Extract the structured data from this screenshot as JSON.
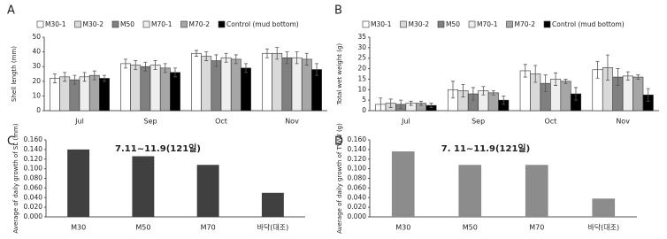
{
  "chart_data": [
    {
      "type": "bar",
      "panel_label": "A",
      "y_label": "Shell length (mm)",
      "categories": [
        "Jul",
        "Sep",
        "Oct",
        "Nov"
      ],
      "ylim": [
        0,
        50
      ],
      "yticks": [
        0,
        10,
        20,
        30,
        40,
        50
      ],
      "series": [
        {
          "name": "M30-1",
          "color": "#ffffff",
          "values": [
            22,
            32,
            39,
            39
          ],
          "errors": [
            3,
            3,
            2,
            3
          ]
        },
        {
          "name": "M30-2",
          "color": "#d9d9d9",
          "values": [
            23,
            31,
            37,
            39
          ],
          "errors": [
            3,
            3,
            3,
            4
          ]
        },
        {
          "name": "M50",
          "color": "#808080",
          "values": [
            21,
            30,
            34,
            36
          ],
          "errors": [
            3,
            3,
            4,
            4
          ]
        },
        {
          "name": "M70-1",
          "color": "#eeeeee",
          "values": [
            23,
            31,
            36,
            36
          ],
          "errors": [
            3,
            3,
            3,
            4
          ]
        },
        {
          "name": "M70-2",
          "color": "#a6a6a6",
          "values": [
            24,
            29,
            35,
            35
          ],
          "errors": [
            3,
            3,
            3,
            4
          ]
        },
        {
          "name": "Control (mud bottom)",
          "color": "#000000",
          "values": [
            22,
            26,
            29,
            28
          ],
          "errors": [
            2,
            3,
            3,
            4
          ]
        }
      ]
    },
    {
      "type": "bar",
      "panel_label": "B",
      "y_label": "Total wet weight (g)",
      "categories": [
        "Jul",
        "Sep",
        "Oct",
        "Nov"
      ],
      "ylim": [
        0,
        35
      ],
      "yticks": [
        0,
        5,
        10,
        15,
        20,
        25,
        30,
        35
      ],
      "series": [
        {
          "name": "M30-1",
          "color": "#ffffff",
          "values": [
            3,
            10,
            19,
            19.5
          ],
          "errors": [
            3,
            4,
            3,
            4
          ]
        },
        {
          "name": "M30-2",
          "color": "#d9d9d9",
          "values": [
            3.5,
            9.5,
            17.5,
            20.5
          ],
          "errors": [
            2,
            3,
            4,
            6
          ]
        },
        {
          "name": "M50",
          "color": "#808080",
          "values": [
            3,
            8,
            13,
            16
          ],
          "errors": [
            2,
            3,
            4,
            4
          ]
        },
        {
          "name": "M70-1",
          "color": "#eeeeee",
          "values": [
            3.5,
            9.5,
            15,
            16.5
          ],
          "errors": [
            1,
            2,
            3,
            2
          ]
        },
        {
          "name": "M70-2",
          "color": "#a6a6a6",
          "values": [
            3.5,
            8.5,
            14,
            16
          ],
          "errors": [
            1,
            1,
            1,
            1
          ]
        },
        {
          "name": "Control (mud bottom)",
          "color": "#000000",
          "values": [
            2.5,
            5,
            8,
            7.5
          ],
          "errors": [
            1,
            2,
            3,
            3
          ]
        }
      ]
    },
    {
      "type": "bar",
      "panel_label": "C",
      "y_label": "Average of daily growth of SL (mm)",
      "annotation": "7.11~11.9(121일)",
      "color": "#404040",
      "categories": [
        "M30",
        "M50",
        "M70",
        "바닥(대조)"
      ],
      "values": [
        0.14,
        0.126,
        0.108,
        0.05
      ],
      "ylim": [
        0,
        0.16
      ],
      "yticks": [
        {
          "value": 0,
          "label": "0.000"
        },
        {
          "value": 0.02,
          "label": "0.020"
        },
        {
          "value": 0.04,
          "label": "0.040"
        },
        {
          "value": 0.06,
          "label": "0.060"
        },
        {
          "value": 0.08,
          "label": "0.080"
        },
        {
          "value": 0.1,
          "label": "0.100"
        },
        {
          "value": 0.12,
          "label": "0.120"
        },
        {
          "value": 0.14,
          "label": "0.140"
        },
        {
          "value": 0.16,
          "label": "0.160"
        }
      ]
    },
    {
      "type": "bar",
      "panel_label": "D",
      "y_label": "Average of daily growth of TWW (g)",
      "annotation": "7. 11~11.9(121일)",
      "color": "#8c8c8c",
      "categories": [
        "M30",
        "M50",
        "M70",
        "바닥(대조)"
      ],
      "values": [
        0.136,
        0.108,
        0.108,
        0.038
      ],
      "ylim": [
        0,
        0.16
      ],
      "yticks": [
        {
          "value": 0,
          "label": "0.000"
        },
        {
          "value": 0.02,
          "label": "0.020"
        },
        {
          "value": 0.04,
          "label": "0.040"
        },
        {
          "value": 0.06,
          "label": "0.060"
        },
        {
          "value": 0.08,
          "label": "0.080"
        },
        {
          "value": 0.1,
          "label": "0.100"
        },
        {
          "value": 0.12,
          "label": "0.120"
        },
        {
          "value": 0.14,
          "label": "0.140"
        },
        {
          "value": 0.16,
          "label": "0.160"
        }
      ]
    }
  ]
}
